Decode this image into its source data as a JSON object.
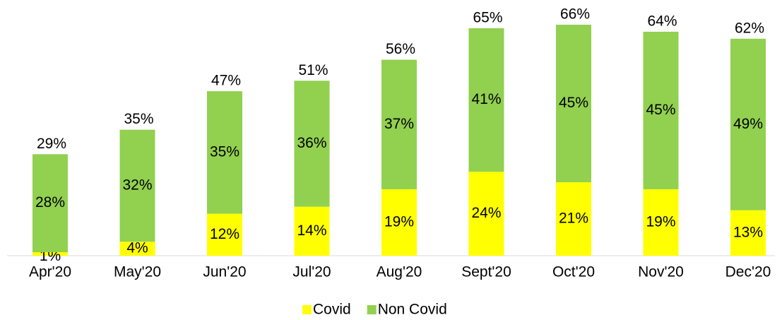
{
  "chart_data": {
    "type": "stacked_bar",
    "categories": [
      "Apr'20",
      "May'20",
      "Jun'20",
      "Jul'20",
      "Aug'20",
      "Sept'20",
      "Oct'20",
      "Nov'20",
      "Dec'20"
    ],
    "series": [
      {
        "name": "Covid",
        "color": "#ffff00",
        "values": [
          1,
          4,
          12,
          14,
          19,
          24,
          21,
          19,
          13
        ],
        "value_labels": [
          "1%",
          "4%",
          "12%",
          "14%",
          "19%",
          "24%",
          "21%",
          "19%",
          "13%"
        ]
      },
      {
        "name": "Non Covid",
        "color": "#92d050",
        "values": [
          28,
          32,
          35,
          36,
          37,
          41,
          45,
          45,
          49
        ],
        "value_labels": [
          "28%",
          "32%",
          "35%",
          "36%",
          "37%",
          "41%",
          "45%",
          "45%",
          "49%"
        ]
      }
    ],
    "totals": [
      29,
      35,
      47,
      51,
      56,
      65,
      66,
      64,
      62
    ],
    "total_labels": [
      "29%",
      "35%",
      "47%",
      "51%",
      "56%",
      "65%",
      "66%",
      "64%",
      "62%"
    ],
    "legend": "bottom"
  }
}
